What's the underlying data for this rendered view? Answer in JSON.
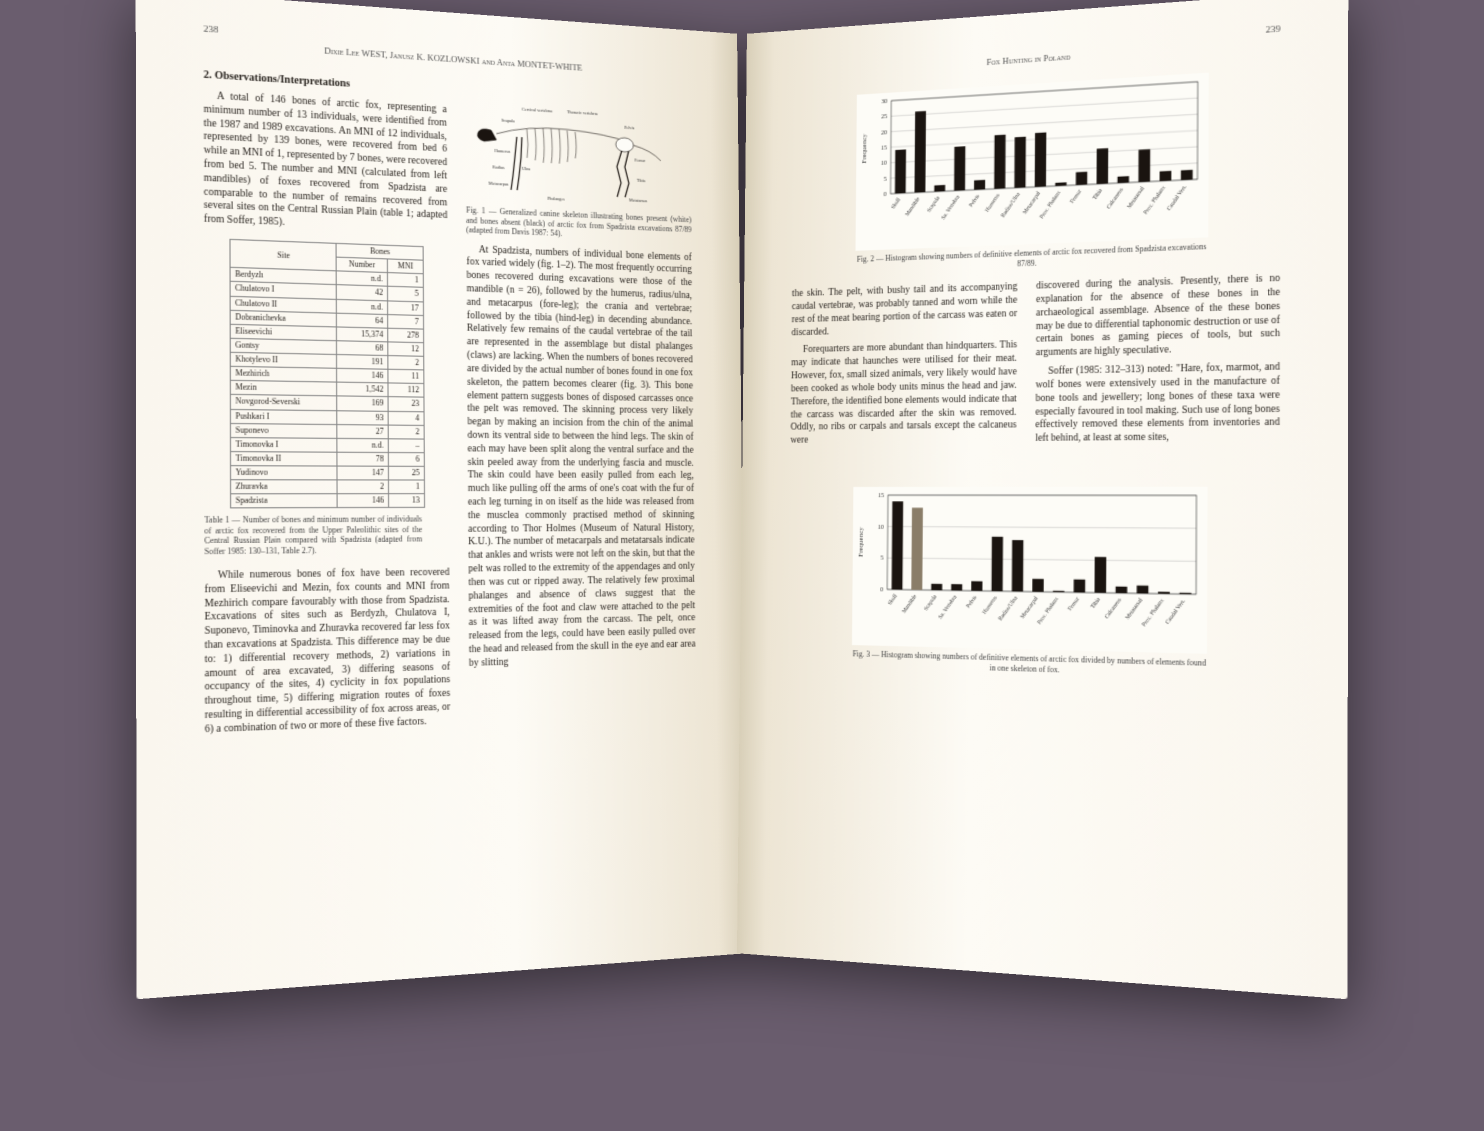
{
  "left": {
    "page_num": "238",
    "running_head": "Dixie Lee WEST, Janusz K. KOZLOWSKI and Anta MONTET-WHITE",
    "section_title": "2. Observations/Interpretations",
    "para1": "A total of 146 bones of arctic fox, representing a minimum number of 13 individuals, were identified from the 1987 and 1989 excavations. An MNI of 12 individuals, represented by 139 bones, were recovered from bed 6 while an MNI of 1, represented by 7 bones, were recovered from bed 5. The number and MNI (calculated from left mandibles) of foxes recovered from Spadzista are comparable to the number of remains recovered from several sites on the Central Russian Plain (table 1; adapted from Soffer, 1985).",
    "fig1_caption": "Fig. 1 — Generalized canine skeleton illustrating bones present (white) and bones absent (black) of arctic fox from Spadzista excavations 87/89 (adapted from Davis 1987: 54).",
    "skeleton_labels": [
      "Cervical vertebrae",
      "Scapula",
      "Thoracic vertebrae",
      "Humerus",
      "Pelvis",
      "Femur",
      "Radius",
      "Ulna",
      "Tibia",
      "Metacarpus",
      "Metatarsus",
      "Phalanges"
    ],
    "table": {
      "headers": [
        "Site",
        "Bones",
        ""
      ],
      "subheaders": [
        "",
        "Number",
        "MNI"
      ],
      "rows": [
        [
          "Berdyzh",
          "n.d.",
          "1"
        ],
        [
          "Chulatovo I",
          "42",
          "5"
        ],
        [
          "Chulatovo II",
          "n.d.",
          "17"
        ],
        [
          "Dobranichevka",
          "64",
          "7"
        ],
        [
          "Eliseevichi",
          "15,374",
          "278"
        ],
        [
          "Gontsy",
          "68",
          "12"
        ],
        [
          "Khotylevo II",
          "191",
          "2"
        ],
        [
          "Mezhirich",
          "146",
          "11"
        ],
        [
          "Mezin",
          "1,542",
          "112"
        ],
        [
          "Novgorod-Severski",
          "169",
          "23"
        ],
        [
          "Pushkari I",
          "93",
          "4"
        ],
        [
          "Suponevo",
          "27",
          "2"
        ],
        [
          "Timonovka I",
          "n.d.",
          "–"
        ],
        [
          "Timonovka II",
          "78",
          "6"
        ],
        [
          "Yudinovo",
          "147",
          "25"
        ],
        [
          "Zhuravka",
          "2",
          "1"
        ],
        [
          "Spadzista",
          "146",
          "13"
        ]
      ]
    },
    "table_caption": "Table 1 — Number of bones and minimum number of individuals of arctic fox recovered from the Upper Paleolithic sites of the Central Russian Plain compared with Spadzista (adapted from Soffer 1985: 130–131, Table 2.7).",
    "para2": "While numerous bones of fox have been recovered from Eliseevichi and Mezin, fox counts and MNI from Mezhirich compare favourably with those from Spadzista. Excavations of sites such as Berdyzh, Chulatova I, Suponevo, Timinovka and Zhuravka recovered far less fox than excavations at Spadzista. This difference may be due to: 1) differential recovery methods, 2) variations in amount of area excavated, 3) differing seasons of occupancy of the sites, 4) cyclicity in fox populations throughout time, 5) differing migration routes of foxes resulting in differential accessibility of fox across areas, or 6) a combination of two or more of these five factors.",
    "col2_para1": "At Spadzista, numbers of individual bone elements of fox varied widely (fig. 1–2). The most frequently occurring bones recovered during excavations were those of the mandible (n = 26), followed by the humerus, radius/ulna, and metacarpus (fore-leg); the crania and vertebrae; followed by the tibia (hind-leg) in decending abundance. Relatively few remains of the caudal vertebrae of the tail are represented in the assemblage but distal phalanges (claws) are lacking. When the numbers of bones recovered are divided by the actual number of bones found in one fox skeleton, the pattern becomes clearer (fig. 3). This bone element pattern suggests bones of disposed carcasses once the pelt was removed. The skinning process very likely began by making an incision from the chin of the animal down its ventral side to between the hind legs. The skin of each may have been split along the ventral surface and the skin peeled away from the underlying fascia and muscle. The skin could have been easily pulled from each leg, much like pulling off the arms of one's coat with the fur of each leg turning in on itself as the hide was released from the musclea commonly practised method of skinning according to Thor Holmes (Museum of Natural History, K.U.). The number of metacarpals and metatarsals indicate that ankles and wrists were not left on the skin, but that the pelt was rolled to the extremity of the appendages and only then was cut or ripped away. The relatively few proximal phalanges and absence of claws suggest that the extremities of the foot and claw were attached to the pelt as it was lifted away from the carcass. The pelt, once released from the legs, could have been easily pulled over the head and released from the skull in the eye and ear area by slitting"
  },
  "right": {
    "page_num": "239",
    "running_head": "Fox Hunting in Poland",
    "chart1": {
      "type": "bar",
      "ylabel": "Frequency",
      "ylim": [
        0,
        30
      ],
      "ytick_step": 5,
      "categories": [
        "Skull",
        "Mandible",
        "Scapula",
        "Sa. Vertebra",
        "Pelvis",
        "Humerus",
        "Radius/Ulna",
        "Metacarpal",
        "Prox. Phalanx",
        "Femur",
        "Tibia",
        "Calcaneus",
        "Metatarsal",
        "Prox. Phalanx",
        "Caudal Vert."
      ],
      "values": [
        14,
        26,
        2,
        14,
        3,
        17,
        16,
        17,
        1,
        4,
        11,
        2,
        10,
        3,
        3
      ],
      "bar_color": "#1a1410",
      "grid_color": "#888",
      "background": "#fdfcf7"
    },
    "fig2_caption": "Fig. 2 — Histogram showing numbers of definitive elements of arctic fox recovered from Spadzista excavations 87/89.",
    "para1": "the skin. The pelt, with bushy tail and its accompanying caudal vertebrae, was probably tanned and worn while the rest of the meat bearing portion of the carcass was eaten or discarded.",
    "para2": "Forequarters are more abundant than hindquarters. This may indicate that haunches were utilised for their meat. However, fox, small sized animals, very likely would have been cooked as whole body units minus the head and jaw. Therefore, the identified bone elements would indicate that the carcass was discarded after the skin was removed. Oddly, no ribs or carpals and tarsals except the calcaneus were",
    "para3": "discovered during the analysis. Presently, there is no explanation for the absence of these bones in the archaeological assemblage. Absence of the these bones may be due to differential taphonomic destruction or use of certain bones as gaming pieces of tools, but such arguments are highly speculative.",
    "para4": "Soffer (1985: 312–313) noted: \"Hare, fox, marmot, and wolf bones were extensively used in the manufacture of bone tools and jewellery; long bones of these taxa were especially favoured in tool making. Such use of long bones effectively removed these elements from inventories and left behind, at least at some sites,",
    "chart2": {
      "type": "bar",
      "ylabel": "Frequency",
      "ylim": [
        0,
        15
      ],
      "ytick_step": 5,
      "categories": [
        "Skull",
        "Mandible",
        "Scapula",
        "Sa. Vertebra",
        "Pelvis",
        "Humerus",
        "Radius/Ulna",
        "Metacarpal",
        "Prox. Phalanx",
        "Femur",
        "Tibia",
        "Calcaneus",
        "Metatarsal",
        "Prox. Phalanx",
        "Caudal Vert."
      ],
      "values": [
        14,
        13,
        1,
        1,
        1.5,
        8.5,
        8,
        2,
        0.2,
        2,
        5.5,
        1,
        1.2,
        0.3,
        0.2
      ],
      "bar_color": "#1a1410",
      "highlight_indices": [
        1
      ],
      "highlight_color": "#8a7d68",
      "grid_color": "#888",
      "background": "#fdfcf7"
    },
    "fig3_caption": "Fig. 3 — Histogram showing numbers of definitive elements of arctic fox divided by numbers of elements found in one skeleton of fox."
  }
}
